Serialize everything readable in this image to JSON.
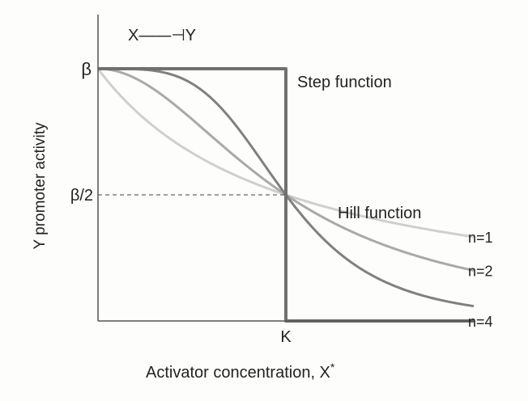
{
  "chart_data": {
    "type": "line",
    "title": "",
    "inset_label": "X——⊣Y",
    "xlabel": "Activator concentration, X",
    "xlabel_superscript": "*",
    "ylabel": "Y promoter activity",
    "x_ticks": [
      {
        "value": 1,
        "label": "K"
      }
    ],
    "y_ticks": [
      {
        "value": 1,
        "label": "β"
      },
      {
        "value": 0.5,
        "label": "β/2"
      }
    ],
    "xlim": [
      0,
      2
    ],
    "ylim": [
      0,
      1
    ],
    "grid": false,
    "annotations": {
      "step": "Step function",
      "hill": "Hill function"
    },
    "series": [
      {
        "name": "Step function",
        "kind": "step",
        "x": [
          0,
          1,
          1,
          2
        ],
        "y": [
          1,
          1,
          0,
          0
        ],
        "color": "#707070"
      },
      {
        "name": "n=1",
        "kind": "hill",
        "n": 1,
        "color": "#cfcfcf"
      },
      {
        "name": "n=2",
        "kind": "hill",
        "n": 2,
        "color": "#a9a9a9"
      },
      {
        "name": "n=4",
        "kind": "hill",
        "n": 4,
        "color": "#808080"
      }
    ]
  }
}
